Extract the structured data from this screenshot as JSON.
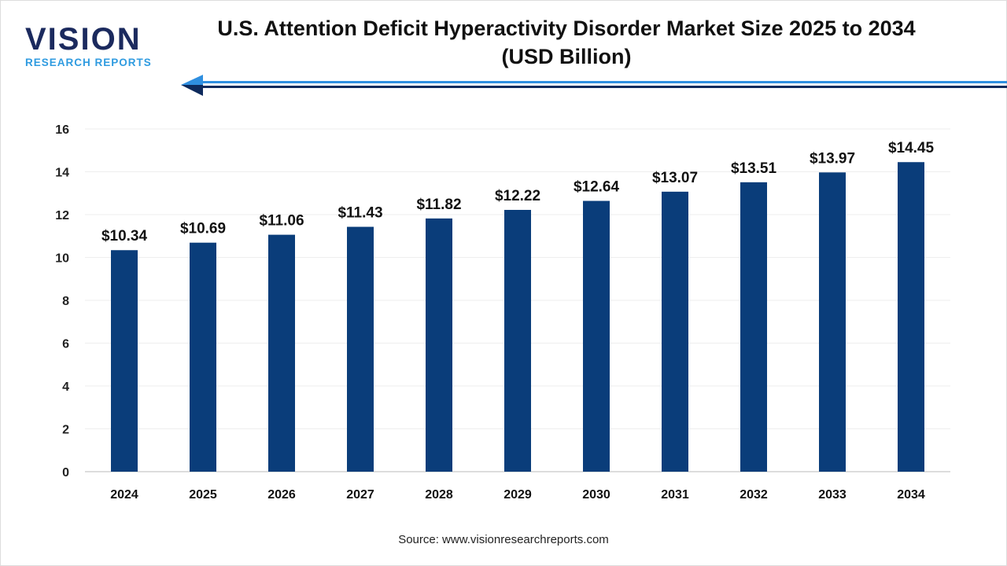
{
  "logo": {
    "brand": "VISION",
    "sub": "RESEARCH REPORTS"
  },
  "source": "Source: www.visionresearchreports.com",
  "colors": {
    "bar": "#0a3d7a",
    "accent": "#2f8fe0",
    "logo_dark": "#1b2a5e"
  },
  "chart_data": {
    "type": "bar",
    "title": "U.S. Attention Deficit Hyperactivity Disorder Market Size 2025 to 2034 (USD Billion)",
    "categories": [
      "2024",
      "2025",
      "2026",
      "2027",
      "2028",
      "2029",
      "2030",
      "2031",
      "2032",
      "2033",
      "2034"
    ],
    "values": [
      10.34,
      10.69,
      11.06,
      11.43,
      11.82,
      12.22,
      12.64,
      13.07,
      13.51,
      13.97,
      14.45
    ],
    "labels": [
      "$10.34",
      "$10.69",
      "$11.06",
      "$11.43",
      "$11.82",
      "$12.22",
      "$12.64",
      "$13.07",
      "$13.51",
      "$13.97",
      "$14.45"
    ],
    "yticks": [
      "0",
      "2",
      "4",
      "6",
      "8",
      "10",
      "12",
      "14",
      "16"
    ],
    "ylim": [
      0,
      16
    ],
    "grid": true,
    "xlabel": "",
    "ylabel": ""
  }
}
